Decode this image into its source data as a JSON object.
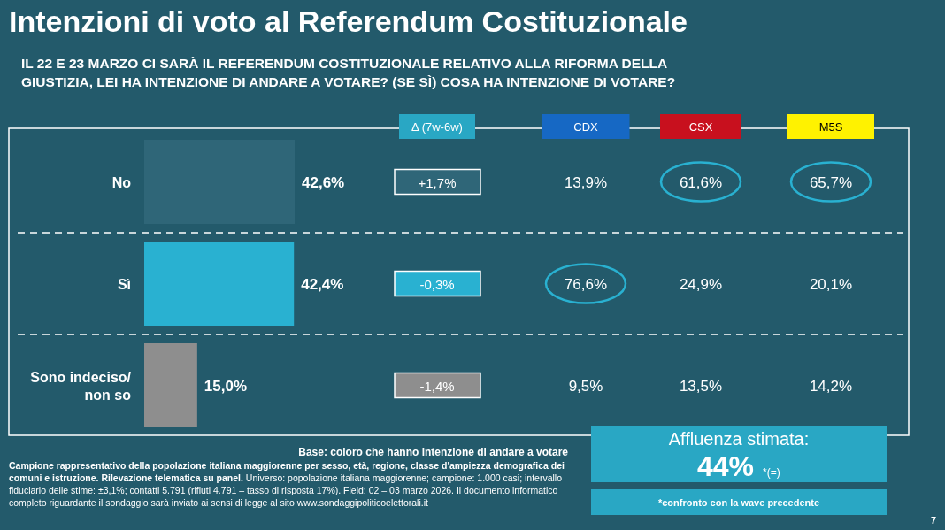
{
  "chart_data": [
    {
      "type": "bar",
      "orientation": "horizontal",
      "title": "Intenzioni di voto al Referendum Costituzionale",
      "subtitle": "IL 22 E 23 MARZO CI SARÀ IL REFERENDUM COSTITUZIONALE RELATIVO ALLA RIFORMA DELLA GIUSTIZIA, LEI HA INTENZIONE DI ANDARE A VOTARE? (SE SÌ) COSA HA INTENZIONE DI VOTARE?",
      "categories": [
        "No",
        "Sì",
        "Sono indeciso/ non so"
      ],
      "values": [
        42.6,
        42.4,
        15.0
      ],
      "value_labels": [
        "42,6%",
        "42,4%",
        "15,0%"
      ],
      "colors": [
        "#2f6678",
        "#29b1d1",
        "#8e8e8e"
      ],
      "annotations": [
        "Base: coloro che hanno intenzione di andare a votare",
        "Affluenza stimata:",
        "44%",
        "*(=)",
        "*confronto con la wave precedente",
        "Campione rappresentativo della popolazione italiana maggiorenne per sesso, età, regione, classe d'ampiezza demografica dei comuni e istruzione. Rilevazione telematica su panel.",
        "Universo: popolazione italiana maggiorenne; campione: 1.000 casi; intervallo fiduciario delle stime: ±3,1%; contatti 5.791 (rifiuti 4.791 – tasso di risposta 17%). Field: 02 – 03 marzo 2026. Il documento informatico completo riguardante il sondaggio sarà inviato ai sensi di legge al sito www.sondaggipoliticoelettorali.it",
        "7"
      ]
    },
    {
      "type": "other",
      "categories": [
        "Δ (7w-6w)",
        "CDX",
        "CSX",
        "M5S"
      ],
      "colors": [
        "#29a7c4",
        "#1668c4",
        "#c8101e",
        "#fff200"
      ],
      "y_categories": [
        null,
        null,
        null
      ],
      "cell_labels": [
        [
          "+1,7%",
          "13,9%",
          "61,6%",
          "65,7%"
        ],
        [
          "-0,3%",
          "76,6%",
          "24,9%",
          "20,1%"
        ],
        [
          "-1,4%",
          "9,5%",
          "13,5%",
          "14,2%"
        ]
      ]
    }
  ]
}
